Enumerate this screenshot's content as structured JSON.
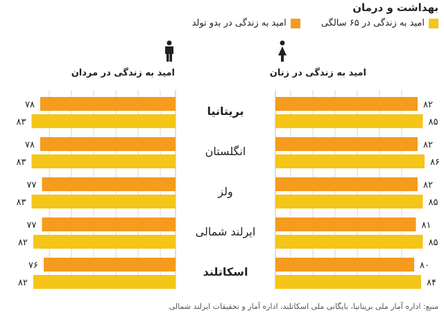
{
  "title": "بهداشت و درمان",
  "legend": [
    {
      "label": "امید به زندگی در ۶۵ سالگی",
      "color": "#F5C518"
    },
    {
      "label": "امید به زندگی در بدو تولد",
      "color": "#F59B1E"
    }
  ],
  "icons": {
    "female": "female-person-icon",
    "male": "male-person-icon"
  },
  "chart_data": {
    "type": "bar",
    "orientation": "horizontal",
    "categories": [
      "بریتانیا",
      "انگلستان",
      "ولز",
      "ایرلند شمالی",
      "اسکاتلند"
    ],
    "panels": [
      {
        "title": "امید به زندگی در زنان",
        "series": [
          {
            "name": "امید به زندگی در بدو تولد",
            "values": [
              82,
              82,
              82,
              81,
              80
            ],
            "labels": [
              "۸۲",
              "۸۲",
              "۸۲",
              "۸۱",
              "۸۰"
            ]
          },
          {
            "name": "امید به زندگی در ۶۵ سالگی",
            "values": [
              85,
              86,
              85,
              85,
              84
            ],
            "labels": [
              "۸۵",
              "۸۶",
              "۸۵",
              "۸۵",
              "۸۴"
            ]
          }
        ]
      },
      {
        "title": "امید به زندگی در مردان",
        "series": [
          {
            "name": "امید به زندگی در بدو تولد",
            "values": [
              78,
              78,
              77,
              77,
              76
            ],
            "labels": [
              "۷۸",
              "۷۸",
              "۷۷",
              "۷۷",
              "۷۶"
            ]
          },
          {
            "name": "امید به زندگی در ۶۵ سالگی",
            "values": [
              83,
              83,
              83,
              82,
              82
            ],
            "labels": [
              "۸۳",
              "۸۳",
              "۸۳",
              "۸۲",
              "۸۲"
            ]
          }
        ]
      }
    ],
    "colors": {
      "birth": "#F59B1E",
      "age65": "#F5C518"
    },
    "bold_categories": [
      "بریتانیا",
      "اسکاتلند"
    ],
    "grid": true
  },
  "source": "منبع: اداره آمار ملی بریتانیا، بایگانی ملی اسکاتلند، اداره آمار و تحقیقات ایرلند شمالی"
}
